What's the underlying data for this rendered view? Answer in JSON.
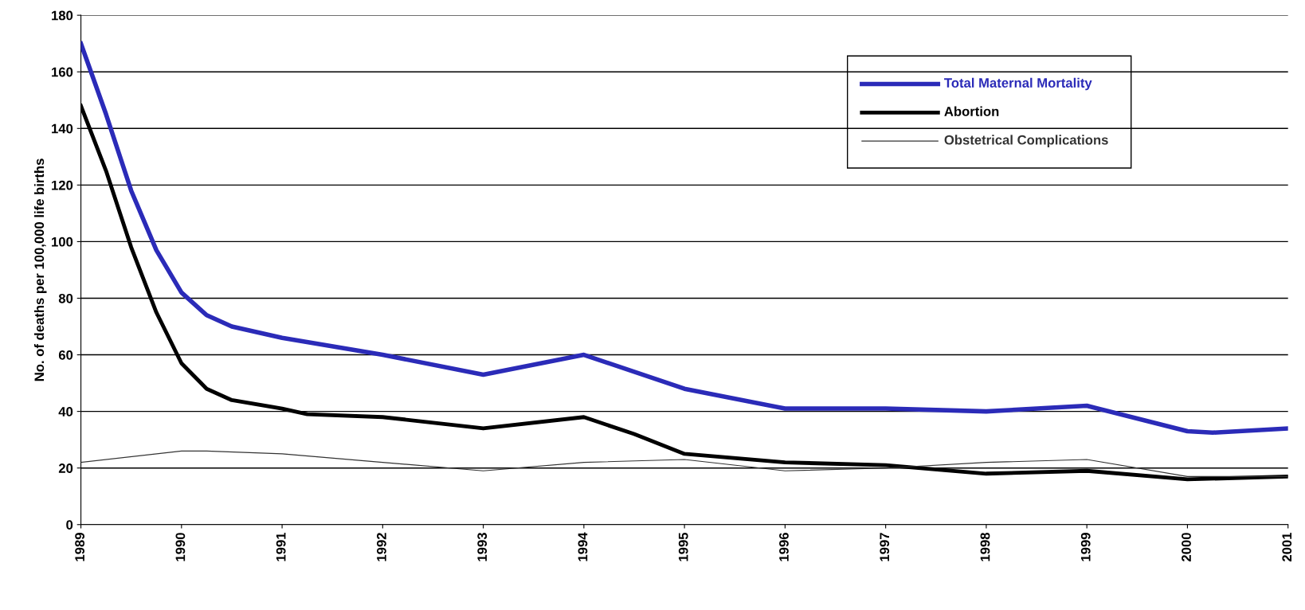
{
  "chart_data": {
    "type": "line",
    "ylabel": "No. of deaths per 100,000 life births",
    "xlim": [
      1989,
      2001
    ],
    "xticks": [
      {
        "value": 1989,
        "label": "1989"
      },
      {
        "value": 1990,
        "label": "1990"
      },
      {
        "value": 1991,
        "label": "1991"
      },
      {
        "value": 1992,
        "label": "1992"
      },
      {
        "value": 1993,
        "label": "1993"
      },
      {
        "value": 1994,
        "label": "1994"
      },
      {
        "value": 1995,
        "label": "1995"
      },
      {
        "value": 1996,
        "label": "1996"
      },
      {
        "value": 1997,
        "label": "1997"
      },
      {
        "value": 1998,
        "label": "1998"
      },
      {
        "value": 1999,
        "label": "1999"
      },
      {
        "value": 2000,
        "label": "2000"
      },
      {
        "value": 2001,
        "label": "2001"
      }
    ],
    "ylim": [
      0,
      180
    ],
    "yticks": [
      0,
      20,
      40,
      60,
      80,
      100,
      120,
      140,
      160,
      180
    ],
    "grid": "y",
    "legend": "top right",
    "marker": "none",
    "series": [
      {
        "name": "Total Maternal Mortality",
        "color": "#2b2bb8",
        "x": [
          1989,
          1989.25,
          1989.5,
          1989.75,
          1990,
          1990.25,
          1990.5,
          1991,
          1992,
          1993,
          1994,
          1995,
          1996,
          1997,
          1998,
          1999,
          2000,
          2000.25,
          2001
        ],
        "values": [
          170,
          145,
          118,
          97,
          82,
          74,
          70,
          66,
          60,
          53,
          60,
          48,
          41,
          41,
          40,
          42,
          33,
          32.5,
          34
        ]
      },
      {
        "name": "Abortion",
        "color": "#000000",
        "x": [
          1989,
          1989.25,
          1989.5,
          1989.75,
          1990,
          1990.25,
          1990.5,
          1991,
          1991.25,
          1992,
          1993,
          1994,
          1994.5,
          1995,
          1996,
          1997,
          1998,
          1999,
          2000,
          2001
        ],
        "values": [
          148,
          125,
          98,
          75,
          57,
          48,
          44,
          41,
          39,
          38,
          34,
          38,
          32,
          25,
          22,
          21,
          18,
          19,
          16,
          17
        ]
      },
      {
        "name": "Obstetrical Complications",
        "color": "#333333",
        "x": [
          1989,
          1990,
          1990.25,
          1991,
          1992,
          1993,
          1994,
          1995,
          1996,
          1997,
          1998,
          1999,
          2000,
          2001
        ],
        "values": [
          22,
          26,
          26,
          25,
          22,
          19,
          22,
          23,
          19,
          20,
          22,
          23,
          17,
          17
        ]
      }
    ]
  }
}
